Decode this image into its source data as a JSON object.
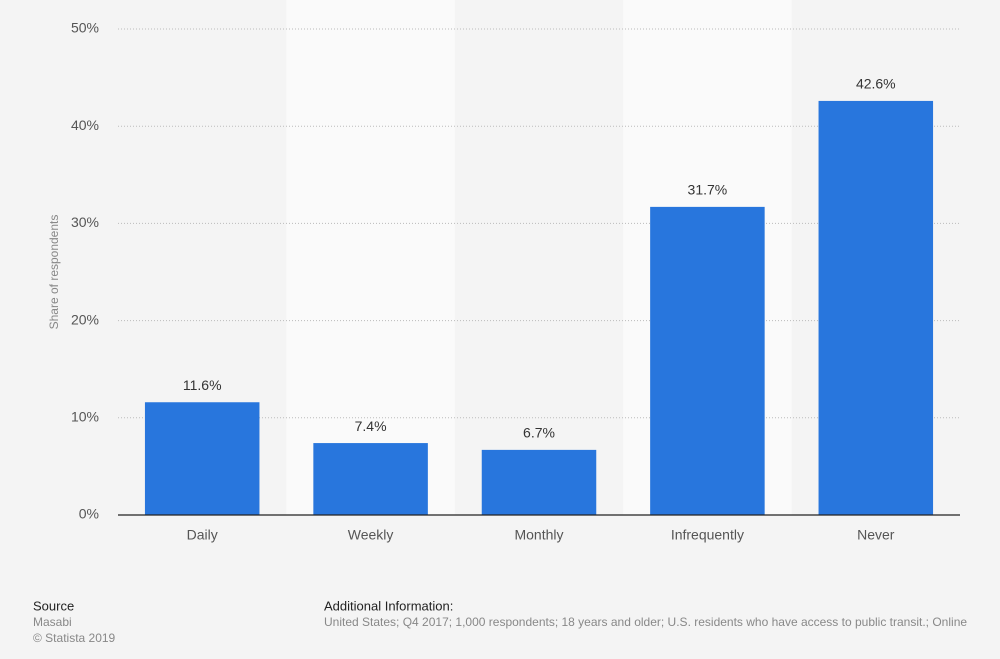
{
  "chart_data": {
    "type": "bar",
    "y_label": "Share of respondents",
    "categories": [
      "Daily",
      "Weekly",
      "Monthly",
      "Infrequently",
      "Never"
    ],
    "values": [
      11.6,
      7.4,
      6.7,
      31.7,
      42.6
    ],
    "value_labels": [
      "11.6%",
      "7.4%",
      "6.7%",
      "31.7%",
      "42.6%"
    ],
    "color": "#2876dd",
    "ylim": [
      0,
      50
    ],
    "yticks": [
      {
        "value": 0,
        "label": "0%"
      },
      {
        "value": 10,
        "label": "10%"
      },
      {
        "value": 20,
        "label": "20%"
      },
      {
        "value": 30,
        "label": "30%"
      },
      {
        "value": 40,
        "label": "40%"
      },
      {
        "value": 50,
        "label": "50%"
      }
    ],
    "grid": true
  },
  "footer": {
    "source_title": "Source",
    "source": "Masabi",
    "copyright": "© Statista 2019",
    "info_title": "Additional Information:",
    "info": "United States; Q4 2017; 1,000 respondents; 18 years and older; U.S. residents who have access to public transit.; Online"
  }
}
